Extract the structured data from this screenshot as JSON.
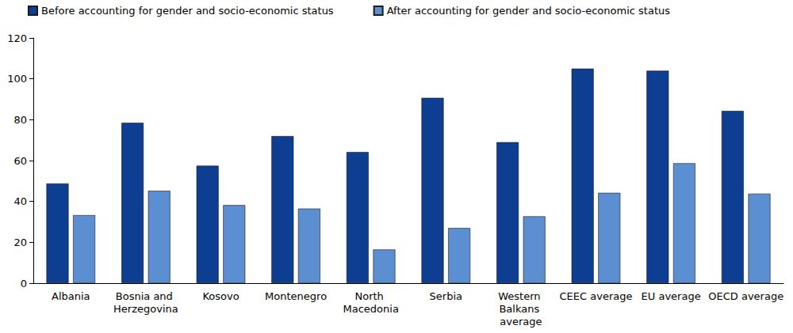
{
  "chart_data": {
    "type": "bar",
    "categories": [
      "Albania",
      "Bosnia and Herzegovina",
      "Kosovo",
      "Montenegro",
      "North Macedonia",
      "Serbia",
      "Western Balkans average",
      "CEEC average",
      "EU average",
      "OECD average"
    ],
    "series": [
      {
        "name": "Before accounting for gender and socio-economic status",
        "color": "#0d3e92",
        "values": [
          48.8,
          78.5,
          57.5,
          72,
          64.2,
          90.7,
          69,
          105,
          104,
          84.3
        ]
      },
      {
        "name": "After accounting for gender and socio-economic status",
        "color": "#5b8fd1",
        "values": [
          33.3,
          45.2,
          38.2,
          36.5,
          16.5,
          27,
          32.7,
          44.2,
          58.7,
          43.8
        ]
      }
    ],
    "ylim": [
      0,
      120
    ],
    "yticks": [
      0,
      20,
      40,
      60,
      80,
      100,
      120
    ],
    "grid": false,
    "legend": "top"
  }
}
